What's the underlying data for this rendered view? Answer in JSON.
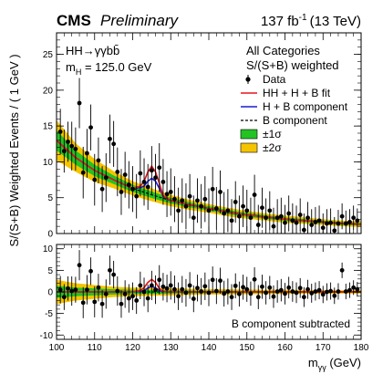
{
  "header": {
    "experiment": "CMS",
    "status": "Preliminary",
    "luminosity": "137 fb",
    "luminosity_exp": "-1",
    "energy": "(13 TeV)"
  },
  "upper": {
    "process": "HH→γγbb̄",
    "mass_label": "m",
    "mass_sub": "H",
    "mass_value": " = 125.0 GeV",
    "category": "All Categories",
    "weighting": "S/(S+B) weighted"
  },
  "lower": {
    "note": "B component subtracted"
  },
  "colors": {
    "fit": "#e8141c",
    "hb": "#1a1ad6",
    "band1": "#22c322",
    "band2": "#f5c400",
    "data": "#000000"
  },
  "chart_data": [
    {
      "type": "scatter",
      "panel": "main",
      "ylabel": "S/(S+B) Weighted Events / ( 1 GeV )",
      "xlim": [
        100,
        180
      ],
      "ylim": [
        0,
        28
      ],
      "y_ticks": [
        0,
        5,
        10,
        15,
        20,
        25
      ],
      "legend": {
        "placement": "top-right",
        "entries": [
          "Data",
          "HH + H + B fit",
          "H + B component",
          "B component",
          "±1σ",
          "±2σ"
        ]
      },
      "series": [
        {
          "name": "Data",
          "x": [
            101,
            102,
            103,
            104,
            105,
            106,
            107,
            108,
            109,
            110,
            111,
            112,
            113,
            114,
            115,
            116,
            117,
            118,
            119,
            120,
            121,
            122,
            123,
            124,
            125,
            126,
            127,
            128,
            129,
            130,
            131,
            132,
            133,
            134,
            135,
            136,
            137,
            138,
            139,
            140,
            141,
            142,
            143,
            144,
            145,
            146,
            147,
            148,
            149,
            150,
            151,
            152,
            153,
            154,
            155,
            156,
            157,
            158,
            159,
            160,
            161,
            162,
            163,
            164,
            165,
            166,
            167,
            168,
            169,
            170,
            171,
            172,
            173,
            174,
            175,
            176,
            177,
            178,
            179
          ],
          "y": [
            14.2,
            11.5,
            12.8,
            12.2,
            11.8,
            18.2,
            8.5,
            11.2,
            14.8,
            7.5,
            10.2,
            6.2,
            7.8,
            13.2,
            12.5,
            8.6,
            5.8,
            8.2,
            6.8,
            6.2,
            5.2,
            8.4,
            7.2,
            6.5,
            8.8,
            7.8,
            9.2,
            7.2,
            5.5,
            5.8,
            4.8,
            3.2,
            4.6,
            3.8,
            5.2,
            2.2,
            4.6,
            3.8,
            4.8,
            3.2,
            6.2,
            3.5,
            5.8,
            2.8,
            3.2,
            1.8,
            4.4,
            2.4,
            3.8,
            3.2,
            2.2,
            5.4,
            1.2,
            3.6,
            2.2,
            3.2,
            1.0,
            2.2,
            2.4,
            1.5,
            2.8,
            1.8,
            1.5,
            2.6,
            0.5,
            2.2,
            1.2,
            1.6,
            1.8,
            0.8,
            1.4,
            1.5,
            0.4,
            1.4,
            2.4,
            1.4,
            1.6,
            2.2,
            1.8
          ],
          "y_err": [
            3.2,
            3.0,
            2.8,
            3.4,
            3.0,
            3.5,
            3.6,
            3.4,
            3.2,
            3.6,
            3.2,
            3.2,
            3.4,
            3.4,
            3.2,
            3.4,
            3.2,
            3.2,
            3.3,
            3.2,
            3.1,
            3.2,
            3.3,
            3.2,
            3.4,
            3.3,
            3.4,
            3.2,
            3.2,
            3.3,
            3.2,
            3.2,
            3.1,
            3.2,
            3.1,
            3.1,
            3.1,
            3.1,
            3.2,
            3.1,
            3.1,
            3.0,
            3.0,
            3.0,
            3.0,
            3.0,
            2.9,
            2.9,
            2.9,
            2.9,
            2.8,
            2.8,
            2.8,
            2.8,
            2.7,
            2.7,
            2.6,
            2.6,
            2.6,
            2.5,
            2.5,
            2.4,
            2.4,
            2.3,
            2.3,
            2.2,
            2.2,
            2.1,
            2.1,
            2.0,
            2.0,
            2.0,
            1.9,
            1.9,
            1.8,
            1.8,
            1.8,
            1.7,
            1.7
          ]
        },
        {
          "name": "B component",
          "x": [
            100,
            105,
            110,
            115,
            120,
            125,
            130,
            135,
            140,
            145,
            150,
            155,
            160,
            165,
            170,
            175,
            180
          ],
          "y": [
            13.0,
            10.6,
            8.8,
            7.5,
            6.3,
            5.4,
            4.6,
            4.0,
            3.5,
            3.0,
            2.6,
            2.3,
            2.0,
            1.8,
            1.6,
            1.4,
            1.3
          ]
        },
        {
          "name": "H + B component",
          "x": [
            100,
            105,
            110,
            115,
            120,
            122,
            123,
            124,
            125,
            126,
            127,
            128,
            130,
            135,
            140,
            145,
            150,
            155,
            160,
            165,
            170,
            175,
            180
          ],
          "y": [
            13.0,
            10.6,
            8.8,
            7.5,
            6.3,
            6.4,
            6.6,
            7.3,
            7.7,
            7.3,
            6.3,
            5.2,
            4.6,
            4.0,
            3.5,
            3.0,
            2.6,
            2.3,
            2.0,
            1.8,
            1.6,
            1.4,
            1.3
          ]
        },
        {
          "name": "HH + H + B fit",
          "x": [
            100,
            105,
            110,
            115,
            120,
            122,
            123,
            124,
            125,
            126,
            127,
            128,
            130,
            135,
            140,
            145,
            150,
            155,
            160,
            165,
            170,
            175,
            180
          ],
          "y": [
            13.0,
            10.6,
            8.8,
            7.5,
            6.3,
            6.6,
            7.3,
            8.6,
            9.4,
            8.6,
            7.0,
            5.3,
            4.6,
            4.0,
            3.5,
            3.0,
            2.6,
            2.3,
            2.0,
            1.8,
            1.6,
            1.4,
            1.3
          ]
        }
      ],
      "bands": {
        "x": [
          100,
          105,
          110,
          115,
          120,
          125,
          130,
          135,
          140,
          145,
          150,
          155,
          160,
          165,
          170,
          175,
          180
        ],
        "sigma1": [
          1.4,
          1.0,
          0.8,
          0.6,
          0.5,
          0.45,
          0.4,
          0.35,
          0.3,
          0.3,
          0.28,
          0.25,
          0.25,
          0.22,
          0.2,
          0.2,
          0.2
        ],
        "sigma2": [
          2.8,
          2.0,
          1.6,
          1.2,
          1.0,
          0.9,
          0.8,
          0.7,
          0.6,
          0.6,
          0.55,
          0.5,
          0.5,
          0.45,
          0.4,
          0.4,
          0.4
        ]
      }
    },
    {
      "type": "scatter",
      "panel": "ratio",
      "xlabel": "m",
      "xlabel_sub": "γγ",
      "xlabel_unit": " (GeV)",
      "xlim": [
        100,
        180
      ],
      "ylim": [
        -11,
        11
      ],
      "x_ticks": [
        100,
        110,
        120,
        130,
        140,
        150,
        160,
        170,
        180
      ],
      "y_ticks": [
        -10,
        -5,
        0,
        5,
        10
      ],
      "series": [
        {
          "name": "Data",
          "x": [
            101,
            102,
            103,
            104,
            105,
            106,
            107,
            108,
            109,
            110,
            111,
            112,
            113,
            114,
            115,
            116,
            117,
            118,
            119,
            120,
            121,
            122,
            123,
            124,
            125,
            126,
            127,
            128,
            129,
            130,
            131,
            132,
            133,
            134,
            135,
            136,
            137,
            138,
            139,
            140,
            141,
            142,
            143,
            144,
            145,
            146,
            147,
            148,
            149,
            150,
            151,
            152,
            153,
            154,
            155,
            156,
            157,
            158,
            159,
            160,
            161,
            162,
            163,
            164,
            165,
            166,
            167,
            168,
            169,
            170,
            171,
            172,
            173,
            174,
            175,
            176,
            177,
            178,
            179
          ],
          "y": [
            0.5,
            -1.2,
            0.8,
            0.2,
            0.5,
            6.2,
            -2.5,
            0.5,
            4.8,
            -2.3,
            1.0,
            -2.8,
            -0.5,
            5.0,
            4.0,
            0.2,
            -2.8,
            -0.5,
            -1.5,
            -1.0,
            -2.0,
            1.5,
            0.0,
            -1.5,
            1.5,
            0.5,
            2.8,
            1.2,
            0.8,
            1.5,
            0.6,
            -1.0,
            0.6,
            -0.2,
            1.5,
            -1.6,
            0.9,
            0.1,
            1.3,
            -0.2,
            2.8,
            0.2,
            2.6,
            -0.4,
            0.1,
            -1.2,
            1.4,
            -0.5,
            1.1,
            0.6,
            -0.4,
            2.9,
            -1.2,
            1.2,
            -0.2,
            1.0,
            -1.1,
            0.1,
            0.4,
            -0.4,
            1.0,
            0.1,
            -0.2,
            0.9,
            -1.2,
            0.6,
            -0.3,
            0.1,
            0.4,
            -0.6,
            0.0,
            0.2,
            -0.9,
            0.1,
            5.0,
            0.1,
            0.4,
            1.0,
            0.6
          ],
          "y_err": [
            3.2,
            3.0,
            2.8,
            3.4,
            3.0,
            3.5,
            3.6,
            3.4,
            3.2,
            3.6,
            3.2,
            3.2,
            3.4,
            3.4,
            3.2,
            3.4,
            3.2,
            3.2,
            3.3,
            3.2,
            3.1,
            3.2,
            3.3,
            3.2,
            3.4,
            3.3,
            3.4,
            3.2,
            3.2,
            3.3,
            3.2,
            3.2,
            3.1,
            3.2,
            3.1,
            3.1,
            3.1,
            3.1,
            3.2,
            3.1,
            3.1,
            3.0,
            3.0,
            3.0,
            3.0,
            3.0,
            2.9,
            2.9,
            2.9,
            2.9,
            2.8,
            2.8,
            2.8,
            2.8,
            2.7,
            2.7,
            2.6,
            2.6,
            2.6,
            2.5,
            2.5,
            2.4,
            2.4,
            2.3,
            2.3,
            2.2,
            2.2,
            2.1,
            2.1,
            2.0,
            2.0,
            2.0,
            1.9,
            1.9,
            1.8,
            1.8,
            1.8,
            1.7,
            1.7
          ]
        },
        {
          "name": "HH + H + B fit",
          "x": [
            100,
            120,
            122,
            123,
            124,
            125,
            126,
            127,
            128,
            130,
            180
          ],
          "y": [
            0,
            0,
            0.3,
            1.0,
            2.2,
            2.9,
            2.2,
            0.8,
            0.1,
            0,
            0
          ]
        },
        {
          "name": "H + B component",
          "x": [
            100,
            120,
            122,
            123,
            124,
            125,
            126,
            127,
            128,
            130,
            180
          ],
          "y": [
            0,
            0,
            0.1,
            0.3,
            0.9,
            1.3,
            0.9,
            0.3,
            0.05,
            0,
            0
          ]
        }
      ],
      "bands": {
        "x": [
          100,
          105,
          110,
          115,
          120,
          125,
          130,
          135,
          140,
          145,
          150,
          155,
          160,
          165,
          170,
          175,
          180
        ],
        "sigma1": [
          1.4,
          1.0,
          0.8,
          0.6,
          0.5,
          0.45,
          0.4,
          0.35,
          0.3,
          0.3,
          0.28,
          0.25,
          0.25,
          0.22,
          0.2,
          0.2,
          0.2
        ],
        "sigma2": [
          2.8,
          2.0,
          1.6,
          1.2,
          1.0,
          0.9,
          0.8,
          0.7,
          0.6,
          0.6,
          0.55,
          0.5,
          0.5,
          0.45,
          0.4,
          0.4,
          0.4
        ]
      }
    }
  ]
}
